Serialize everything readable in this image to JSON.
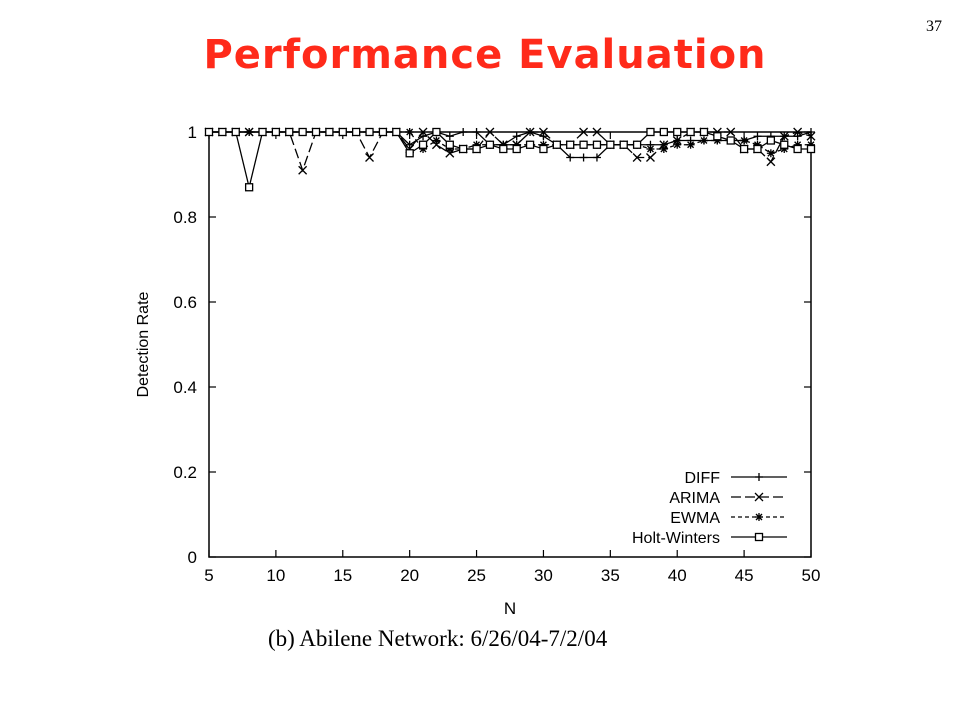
{
  "slide": {
    "title": "Performance Evaluation",
    "number": "37",
    "caption": "(b) Abilene Network:  6/26/04-7/2/04",
    "title_color": "#ff2a1a"
  },
  "chart_data": {
    "type": "line",
    "xlabel": "N",
    "ylabel": "Detection Rate",
    "xlim": [
      5,
      50
    ],
    "ylim": [
      0,
      1
    ],
    "xticks": [
      5,
      10,
      15,
      20,
      25,
      30,
      35,
      40,
      45,
      50
    ],
    "yticks": [
      0,
      0.2,
      0.4,
      0.6,
      0.8,
      1
    ],
    "ytick_labels": [
      "0",
      "0.2",
      "0.4",
      "0.6",
      "0.8",
      "1"
    ],
    "grid": false,
    "legend_position": "bottom-right",
    "series": [
      {
        "name": "DIFF",
        "marker": "plus",
        "dash": "solid",
        "x": [
          5,
          6,
          7,
          8,
          9,
          10,
          11,
          12,
          13,
          14,
          15,
          16,
          17,
          18,
          19,
          20,
          21,
          22,
          23,
          24,
          25,
          26,
          27,
          28,
          29,
          30,
          31,
          32,
          33,
          34,
          35,
          36,
          37,
          38,
          39,
          40,
          41,
          42,
          43,
          44,
          45,
          46,
          47,
          48,
          49,
          50
        ],
        "y": [
          1,
          1,
          1,
          1,
          1,
          1,
          1,
          1,
          1,
          1,
          1,
          1,
          1,
          1,
          1,
          0.97,
          0.99,
          1,
          0.99,
          1,
          1,
          0.97,
          0.97,
          0.99,
          1,
          0.99,
          0.97,
          0.94,
          0.94,
          0.94,
          0.97,
          0.97,
          0.97,
          0.97,
          0.97,
          0.98,
          0.98,
          0.98,
          0.98,
          0.98,
          0.98,
          0.99,
          0.99,
          0.99,
          0.99,
          1
        ]
      },
      {
        "name": "ARIMA",
        "marker": "x",
        "dash": "long-dash",
        "x": [
          5,
          6,
          7,
          8,
          9,
          10,
          11,
          12,
          13,
          14,
          15,
          16,
          17,
          18,
          19,
          20,
          21,
          22,
          23,
          24,
          25,
          26,
          27,
          28,
          29,
          30,
          31,
          32,
          33,
          34,
          35,
          36,
          37,
          38,
          39,
          40,
          41,
          42,
          43,
          44,
          45,
          46,
          47,
          48,
          49,
          50
        ],
        "y": [
          1,
          1,
          1,
          1,
          1,
          1,
          1,
          0.91,
          1,
          1,
          1,
          1,
          0.94,
          1,
          1,
          0.96,
          1,
          0.97,
          0.95,
          0.96,
          0.96,
          1,
          0.97,
          0.97,
          1,
          1,
          0.97,
          0.97,
          1,
          1,
          0.97,
          0.97,
          0.94,
          0.94,
          0.97,
          0.98,
          1,
          1,
          1,
          1,
          0.96,
          0.96,
          0.93,
          0.99,
          1,
          0.99
        ]
      },
      {
        "name": "EWMA",
        "marker": "star",
        "dash": "short-dash",
        "x": [
          5,
          6,
          7,
          8,
          9,
          10,
          11,
          12,
          13,
          14,
          15,
          16,
          17,
          18,
          19,
          20,
          21,
          22,
          23,
          24,
          25,
          26,
          27,
          28,
          29,
          30,
          31,
          32,
          33,
          34,
          35,
          36,
          37,
          38,
          39,
          40,
          41,
          42,
          43,
          44,
          45,
          46,
          47,
          48,
          49,
          50
        ],
        "y": [
          1,
          1,
          1,
          1,
          1,
          1,
          1,
          1,
          1,
          1,
          1,
          1,
          1,
          1,
          1,
          1,
          0.96,
          0.98,
          0.96,
          0.96,
          0.97,
          0.97,
          0.97,
          0.97,
          0.97,
          0.97,
          0.97,
          0.97,
          0.97,
          0.97,
          0.97,
          0.97,
          0.97,
          0.96,
          0.96,
          0.97,
          0.97,
          0.98,
          0.98,
          0.98,
          0.98,
          0.97,
          0.95,
          0.96,
          0.97,
          0.97
        ]
      },
      {
        "name": "Holt-Winters",
        "marker": "square",
        "dash": "solid",
        "x": [
          5,
          6,
          7,
          8,
          9,
          10,
          11,
          12,
          13,
          14,
          15,
          16,
          17,
          18,
          19,
          20,
          21,
          22,
          23,
          24,
          25,
          26,
          27,
          28,
          29,
          30,
          31,
          32,
          33,
          34,
          35,
          36,
          37,
          38,
          39,
          40,
          41,
          42,
          43,
          44,
          45,
          46,
          47,
          48,
          49,
          50
        ],
        "y": [
          1,
          1,
          1,
          0.87,
          1,
          1,
          1,
          1,
          1,
          1,
          1,
          1,
          1,
          1,
          1,
          0.95,
          0.97,
          1,
          0.97,
          0.96,
          0.96,
          0.97,
          0.96,
          0.96,
          0.97,
          0.96,
          0.97,
          0.97,
          0.97,
          0.97,
          0.97,
          0.97,
          0.97,
          1,
          1,
          1,
          1,
          1,
          0.99,
          0.98,
          0.96,
          0.96,
          0.98,
          0.97,
          0.96,
          0.96
        ]
      }
    ]
  }
}
